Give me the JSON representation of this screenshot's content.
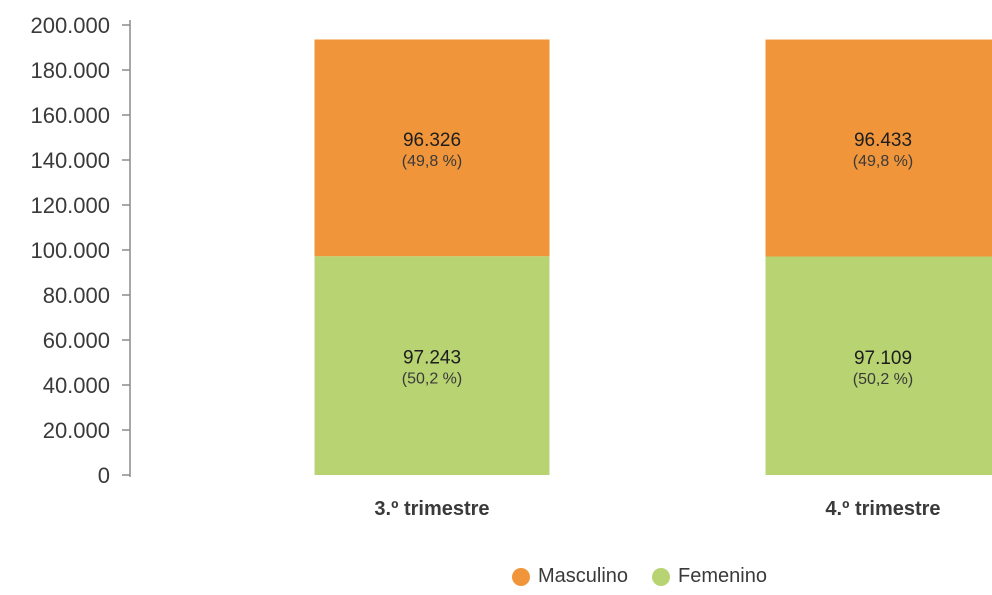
{
  "chart_data": {
    "type": "bar",
    "stacked": true,
    "categories": [
      "3.º trimestre",
      "4.º trimestre"
    ],
    "ylim": [
      0,
      200000
    ],
    "y_ticks": [
      {
        "value": 0,
        "label": "0"
      },
      {
        "value": 20000,
        "label": "20.000"
      },
      {
        "value": 40000,
        "label": "40.000"
      },
      {
        "value": 60000,
        "label": "60.000"
      },
      {
        "value": 80000,
        "label": "80.000"
      },
      {
        "value": 100000,
        "label": "100.000"
      },
      {
        "value": 120000,
        "label": "120.000"
      },
      {
        "value": 140000,
        "label": "140.000"
      },
      {
        "value": 160000,
        "label": "160.000"
      },
      {
        "value": 180000,
        "label": "180.000"
      },
      {
        "value": 200000,
        "label": "200.000"
      }
    ],
    "series": [
      {
        "name": "Femenino",
        "color": "#b8d372",
        "values": [
          97243,
          97109
        ],
        "value_labels": [
          "97.243",
          "97.109"
        ],
        "pct_labels": [
          "(50,2 %)",
          "(50,2 %)"
        ]
      },
      {
        "name": "Masculino",
        "color": "#f0953a",
        "values": [
          96326,
          96433
        ],
        "value_labels": [
          "96.326",
          "96.433"
        ],
        "pct_labels": [
          "(49,8 %)",
          "(49,8 %)"
        ]
      }
    ],
    "legend": {
      "placement": "bottom-right",
      "items": [
        {
          "name": "Masculino",
          "color": "#f0953a"
        },
        {
          "name": "Femenino",
          "color": "#b8d372"
        }
      ]
    },
    "grid": false
  }
}
